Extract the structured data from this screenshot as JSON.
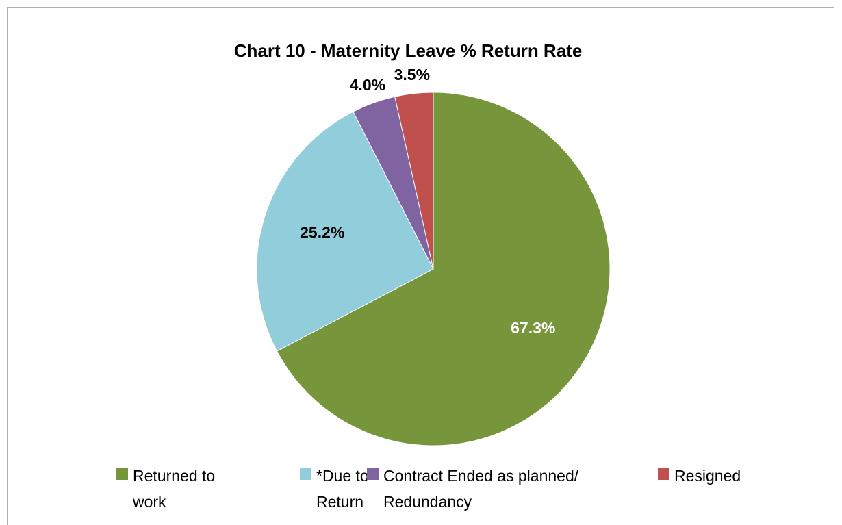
{
  "chart_data": {
    "type": "pie",
    "title": "Chart 10 - Maternity Leave % Return Rate",
    "categories": [
      "Returned to work",
      "*Due to Return",
      "Contract Ended as planned/ Redundancy",
      "Resigned"
    ],
    "values": [
      67.3,
      25.2,
      4.0,
      3.5
    ],
    "value_labels": [
      "67.3%",
      "25.2%",
      "4.0%",
      "3.5%"
    ],
    "colors": [
      "#77963c",
      "#92cddc",
      "#8064a2",
      "#c0504d"
    ],
    "label_colors": [
      "#ffffff",
      "#000000",
      "#000000",
      "#000000"
    ],
    "legend": "bottom"
  }
}
